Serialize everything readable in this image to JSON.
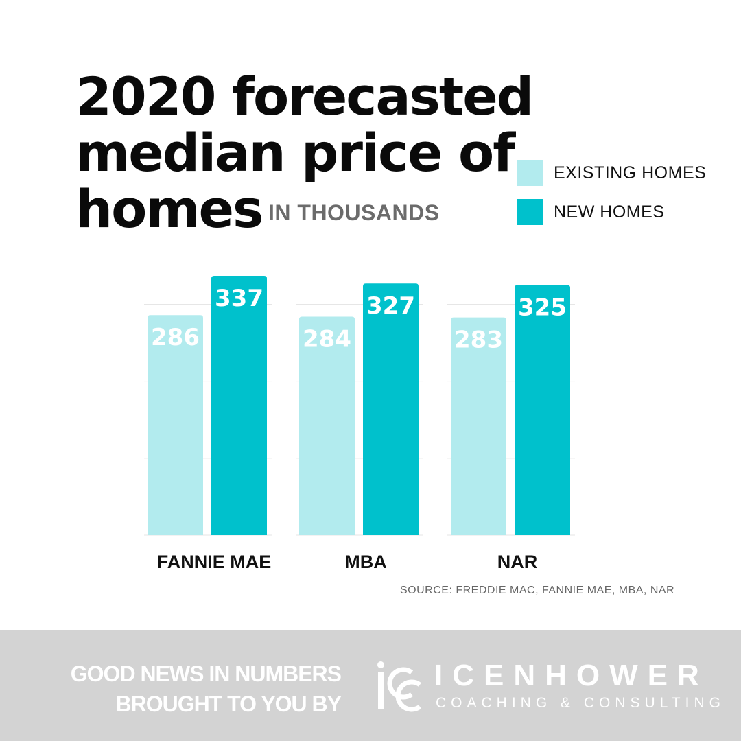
{
  "header": {
    "title_lines": [
      "2020 forecasted",
      "median price of",
      "homes"
    ],
    "subtitle": "IN THOUSANDS"
  },
  "legend": [
    {
      "label": "EXISTING HOMES",
      "color": "#b2ebee"
    },
    {
      "label": "NEW HOMES",
      "color": "#00c1cc"
    }
  ],
  "chart_data": {
    "type": "bar",
    "title": "2020 forecasted median price of homes",
    "ylabel": "IN THOUSANDS",
    "categories": [
      "FANNIE MAE",
      "MBA",
      "NAR"
    ],
    "series": [
      {
        "name": "EXISTING HOMES",
        "values": [
          286,
          284,
          283
        ],
        "color": "#b2ebee"
      },
      {
        "name": "NEW HOMES",
        "values": [
          337,
          327,
          325
        ],
        "color": "#00c1cc"
      }
    ],
    "ylim": [
      0,
      337
    ],
    "gridlines": [
      100,
      200,
      300
    ],
    "grid": true,
    "data_labels": true,
    "legend_position": "top-right"
  },
  "source": "SOURCE: FREDDIE MAC, FANNIE MAE, MBA, NAR",
  "footer": {
    "tagline_lines": [
      "GOOD NEWS IN NUMBERS",
      "BROUGHT TO YOU BY"
    ],
    "logo_name": "ICENHOWER",
    "logo_sub": "COACHING & CONSULTING",
    "background": "#d3d3d3"
  }
}
